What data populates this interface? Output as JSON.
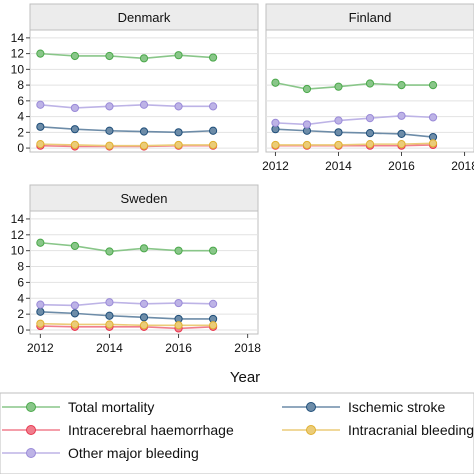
{
  "chart_data": {
    "type": "line",
    "xlabel": "Year",
    "ylabel": "",
    "xlim": [
      2011.7,
      2018.3
    ],
    "ylim": [
      -0.5,
      15
    ],
    "x_ticks": [
      2012,
      2014,
      2016,
      2018
    ],
    "y_ticks": [
      0,
      2,
      4,
      6,
      8,
      10,
      12,
      14
    ],
    "grid": true,
    "legend_position": "bottom",
    "x": [
      2012,
      2013,
      2014,
      2015,
      2016,
      2017
    ],
    "colors": {
      "total_mortality": "#4aa84a",
      "ischemic_stroke": "#1f4e79",
      "intracerebral_haemorrhage": "#e8384f",
      "intracranial_bleeding": "#e0b030",
      "other_major_bleeding": "#9a8ad8"
    },
    "panels": [
      {
        "title": "Denmark",
        "series": [
          {
            "key": "total_mortality",
            "values": [
              12.0,
              11.7,
              11.7,
              11.4,
              11.8,
              11.5
            ]
          },
          {
            "key": "ischemic_stroke",
            "values": [
              2.7,
              2.4,
              2.2,
              2.1,
              2.0,
              2.2
            ]
          },
          {
            "key": "intracerebral_haemorrhage",
            "values": [
              0.3,
              0.2,
              0.2,
              0.2,
              0.3,
              0.3
            ]
          },
          {
            "key": "intracranial_bleeding",
            "values": [
              0.5,
              0.4,
              0.3,
              0.3,
              0.4,
              0.4
            ]
          },
          {
            "key": "other_major_bleeding",
            "values": [
              5.5,
              5.1,
              5.3,
              5.5,
              5.3,
              5.3
            ]
          }
        ]
      },
      {
        "title": "Finland",
        "series": [
          {
            "key": "total_mortality",
            "values": [
              8.3,
              7.5,
              7.8,
              8.2,
              8.0,
              8.0
            ]
          },
          {
            "key": "ischemic_stroke",
            "values": [
              2.4,
              2.2,
              2.0,
              1.9,
              1.8,
              1.4
            ]
          },
          {
            "key": "intracerebral_haemorrhage",
            "values": [
              0.3,
              0.3,
              0.3,
              0.3,
              0.3,
              0.4
            ]
          },
          {
            "key": "intracranial_bleeding",
            "values": [
              0.4,
              0.4,
              0.4,
              0.5,
              0.5,
              0.6
            ]
          },
          {
            "key": "other_major_bleeding",
            "values": [
              3.2,
              3.0,
              3.5,
              3.8,
              4.1,
              3.9
            ]
          }
        ]
      },
      {
        "title": "Sweden",
        "series": [
          {
            "key": "total_mortality",
            "values": [
              11.0,
              10.6,
              9.9,
              10.3,
              10.0,
              10.0
            ]
          },
          {
            "key": "ischemic_stroke",
            "values": [
              2.3,
              2.1,
              1.8,
              1.6,
              1.4,
              1.4
            ]
          },
          {
            "key": "intracerebral_haemorrhage",
            "values": [
              0.5,
              0.4,
              0.4,
              0.4,
              0.2,
              0.4
            ]
          },
          {
            "key": "intracranial_bleeding",
            "values": [
              0.8,
              0.7,
              0.7,
              0.6,
              0.6,
              0.6
            ]
          },
          {
            "key": "other_major_bleeding",
            "values": [
              3.2,
              3.1,
              3.5,
              3.3,
              3.4,
              3.3
            ]
          }
        ]
      }
    ],
    "legend": [
      {
        "key": "total_mortality",
        "label": "Total mortality"
      },
      {
        "key": "ischemic_stroke",
        "label": "Ischemic stroke"
      },
      {
        "key": "intracerebral_haemorrhage",
        "label": "Intracerebral haemorrhage"
      },
      {
        "key": "intracranial_bleeding",
        "label": "Intracranial bleeding"
      },
      {
        "key": "other_major_bleeding",
        "label": "Other major bleeding"
      }
    ]
  }
}
